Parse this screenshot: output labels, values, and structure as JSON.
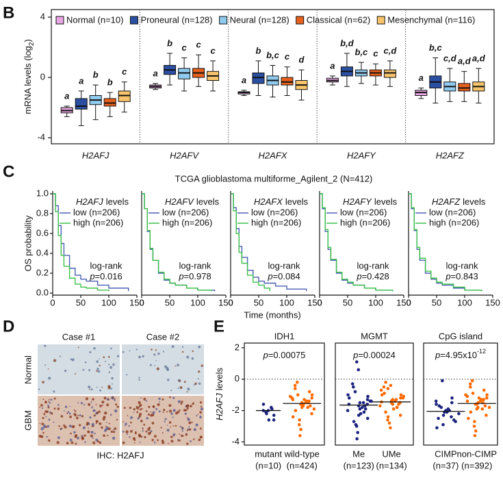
{
  "panel_labels": [
    "B",
    "C",
    "D",
    "E"
  ],
  "panel_c": {
    "title": "TCGA glioblastoma multiforme_Agilent_2 (N=412)",
    "y_label": "OS probability",
    "x_label": "Time (months)"
  },
  "figure_d": {
    "columns": [
      "Case #1",
      "Case #2"
    ],
    "rows": [
      "Normal",
      "GBM"
    ],
    "caption": "IHC: H2AFJ"
  },
  "chart_data": [
    {
      "type": "box",
      "y_label": "mRNA levels (log",
      "y_label_sub": "2",
      "y_label_end": ")",
      "categories": [
        "H2AFJ",
        "H2AFV",
        "H2AFX",
        "H2AFY",
        "H2AFZ"
      ],
      "ylim": [
        -4.4,
        4.5
      ],
      "yticks": [
        -4,
        0,
        4
      ],
      "series": [
        {
          "name": "Normal (n=10)",
          "color": "#e8a6e2",
          "values": [
            [
              -2.6,
              -2.35,
              -2.2,
              -2.0,
              -1.9
            ],
            [
              -0.8,
              -0.7,
              -0.6,
              -0.5,
              -0.4
            ],
            [
              -1.2,
              -1.1,
              -1.0,
              -0.95,
              -0.85
            ],
            [
              -0.5,
              -0.3,
              -0.2,
              -0.05,
              0.1
            ],
            [
              -1.4,
              -1.2,
              -1.0,
              -0.85,
              -0.7
            ]
          ],
          "letters": [
            "a",
            "a",
            "a",
            "a",
            "a"
          ]
        },
        {
          "name": "Proneural (n=128)",
          "color": "#2b4fa3",
          "values": [
            [
              -3.2,
              -2.1,
              -1.9,
              -1.4,
              -0.9
            ],
            [
              -0.5,
              0.2,
              0.5,
              0.8,
              1.6
            ],
            [
              -1.2,
              -0.4,
              0.0,
              0.3,
              1.1
            ],
            [
              -0.6,
              0.1,
              0.4,
              0.7,
              1.6
            ],
            [
              -1.7,
              -0.7,
              -0.3,
              0.1,
              1.3
            ]
          ],
          "letters": [
            "a",
            "b",
            "b",
            "b,d",
            "b,c"
          ]
        },
        {
          "name": "Neural (n=128)",
          "color": "#8fcbef",
          "values": [
            [
              -2.8,
              -1.8,
              -1.5,
              -1.2,
              -0.5
            ],
            [
              -0.9,
              -0.1,
              0.3,
              0.6,
              1.3
            ],
            [
              -1.3,
              -0.5,
              -0.2,
              0.1,
              0.8
            ],
            [
              -0.4,
              0.1,
              0.3,
              0.5,
              1.0
            ],
            [
              -1.6,
              -0.9,
              -0.6,
              -0.3,
              0.6
            ]
          ],
          "letters": [
            "b",
            "c",
            "b,c",
            "b,c",
            "c,d"
          ]
        },
        {
          "name": "Classical (n=62)",
          "color": "#e8601c",
          "values": [
            [
              -2.6,
              -1.9,
              -1.7,
              -1.4,
              -1.0
            ],
            [
              -0.6,
              0.0,
              0.3,
              0.6,
              1.5
            ],
            [
              -1.2,
              -0.5,
              -0.3,
              0.0,
              0.7
            ],
            [
              -0.5,
              0.1,
              0.3,
              0.5,
              0.9
            ],
            [
              -1.6,
              -0.9,
              -0.7,
              -0.4,
              0.4
            ]
          ],
          "letters": [
            "b",
            "c",
            "c",
            "c",
            "a,d"
          ]
        },
        {
          "name": "Mesenchymal (n=116)",
          "color": "#f7c46b",
          "values": [
            [
              -2.3,
              -1.6,
              -1.2,
              -0.9,
              -0.3
            ],
            [
              -0.9,
              -0.2,
              0.1,
              0.4,
              1.1
            ],
            [
              -1.5,
              -0.8,
              -0.5,
              -0.2,
              0.5
            ],
            [
              -0.6,
              0.0,
              0.3,
              0.5,
              1.1
            ],
            [
              -1.7,
              -0.9,
              -0.6,
              -0.3,
              0.6
            ]
          ],
          "letters": [
            "c",
            "c",
            "d",
            "c,d",
            "a,d"
          ]
        }
      ]
    },
    {
      "type": "km",
      "legend_gene": "H2AFJ",
      "legend_title": "levels",
      "stat": "log-rank",
      "p_label": "p",
      "p_value": "=0.016",
      "xlim": [
        0,
        150
      ],
      "xticks": [
        0,
        50,
        100,
        150
      ],
      "ylim": [
        0,
        1.0
      ],
      "yticks": [
        {
          "value": 0,
          "label": "0.0"
        },
        {
          "value": 0.2,
          "label": "0.2"
        },
        {
          "value": 0.4,
          "label": "0.4"
        },
        {
          "value": 0.6,
          "label": "0.6"
        },
        {
          "value": 0.8,
          "label": "0.8"
        },
        {
          "value": 1.0,
          "label": "1.0"
        }
      ],
      "series": [
        {
          "name": "low (n=206)",
          "color": "#4a5fb3",
          "x": [
            0,
            5,
            10,
            15,
            20,
            30,
            40,
            50,
            60,
            80,
            100,
            135
          ],
          "values": [
            1,
            0.88,
            0.68,
            0.5,
            0.38,
            0.25,
            0.18,
            0.14,
            0.12,
            0.08,
            0.05,
            0.02
          ]
        },
        {
          "name": "high (n=206)",
          "color": "#3cc04a",
          "x": [
            0,
            5,
            10,
            15,
            20,
            30,
            40,
            50,
            60,
            80,
            100
          ],
          "values": [
            1,
            0.82,
            0.58,
            0.38,
            0.27,
            0.15,
            0.09,
            0.06,
            0.05,
            0.03,
            0.02
          ]
        }
      ]
    },
    {
      "type": "km",
      "legend_gene": "H2AFV",
      "legend_title": "levels",
      "stat": "log-rank",
      "p_label": "p",
      "p_value": "=0.978",
      "xlim": [
        0,
        150
      ],
      "xticks": [
        0,
        50,
        100,
        150
      ],
      "ylim": [
        0,
        1.0
      ],
      "series": [
        {
          "name": "low (n=206)",
          "color": "#4a5fb3",
          "x": [
            0,
            5,
            10,
            15,
            20,
            30,
            40,
            50,
            60,
            80,
            100,
            130
          ],
          "values": [
            1,
            0.85,
            0.62,
            0.44,
            0.33,
            0.2,
            0.13,
            0.1,
            0.08,
            0.05,
            0.03,
            0.02
          ]
        },
        {
          "name": "high (n=206)",
          "color": "#3cc04a",
          "x": [
            0,
            5,
            10,
            15,
            20,
            30,
            40,
            50,
            60,
            80,
            100,
            125
          ],
          "values": [
            1,
            0.85,
            0.63,
            0.45,
            0.33,
            0.21,
            0.14,
            0.1,
            0.08,
            0.05,
            0.03,
            0.02
          ]
        }
      ]
    },
    {
      "type": "km",
      "legend_gene": "H2AFX",
      "legend_title": "levels",
      "stat": "log-rank",
      "p_label": "p",
      "p_value": "=0.084",
      "xlim": [
        0,
        150
      ],
      "xticks": [
        0,
        50,
        100,
        150
      ],
      "ylim": [
        0,
        1.0
      ],
      "series": [
        {
          "name": "low (n=206)",
          "color": "#4a5fb3",
          "x": [
            0,
            5,
            10,
            15,
            20,
            30,
            40,
            50,
            60,
            80,
            100,
            135
          ],
          "values": [
            1,
            0.86,
            0.65,
            0.47,
            0.36,
            0.23,
            0.16,
            0.12,
            0.1,
            0.07,
            0.04,
            0.02
          ]
        },
        {
          "name": "high (n=206)",
          "color": "#3cc04a",
          "x": [
            0,
            5,
            10,
            15,
            20,
            30,
            40,
            50,
            60,
            70
          ],
          "values": [
            1,
            0.83,
            0.6,
            0.41,
            0.3,
            0.18,
            0.11,
            0.08,
            0.05,
            0.02
          ]
        }
      ]
    },
    {
      "type": "km",
      "legend_gene": "H2AFY",
      "legend_title": "levels",
      "stat": "log-rank",
      "p_label": "p",
      "p_value": "=0.428",
      "xlim": [
        0,
        150
      ],
      "xticks": [
        0,
        50,
        100,
        150
      ],
      "ylim": [
        0,
        1.0
      ],
      "series": [
        {
          "name": "low (n=206)",
          "color": "#4a5fb3",
          "x": [
            0,
            5,
            10,
            15,
            20,
            30,
            40,
            50,
            60,
            80,
            100,
            130
          ],
          "values": [
            1,
            0.85,
            0.62,
            0.44,
            0.33,
            0.2,
            0.13,
            0.1,
            0.08,
            0.05,
            0.03,
            0.02
          ]
        },
        {
          "name": "high (n=206)",
          "color": "#3cc04a",
          "x": [
            0,
            5,
            10,
            15,
            20,
            30,
            40,
            50,
            60,
            80,
            100,
            130
          ],
          "values": [
            1,
            0.86,
            0.64,
            0.46,
            0.34,
            0.21,
            0.14,
            0.11,
            0.08,
            0.05,
            0.03,
            0.02
          ]
        }
      ]
    },
    {
      "type": "km",
      "legend_gene": "H2AFZ",
      "legend_title": "levels",
      "stat": "log-rank",
      "p_label": "p",
      "p_value": "=0.843",
      "xlim": [
        0,
        150
      ],
      "xticks": [
        0,
        50,
        100,
        150
      ],
      "ylim": [
        0,
        1.0
      ],
      "series": [
        {
          "name": "low (n=206)",
          "color": "#4a5fb3",
          "x": [
            0,
            5,
            10,
            15,
            20,
            30,
            40,
            50,
            60,
            80,
            100,
            130
          ],
          "values": [
            1,
            0.85,
            0.63,
            0.44,
            0.33,
            0.2,
            0.14,
            0.1,
            0.08,
            0.05,
            0.03,
            0.02
          ]
        },
        {
          "name": "high (n=206)",
          "color": "#3cc04a",
          "x": [
            0,
            5,
            10,
            15,
            20,
            30,
            40,
            50,
            60,
            80,
            100,
            130
          ],
          "values": [
            1,
            0.86,
            0.64,
            0.46,
            0.35,
            0.22,
            0.15,
            0.11,
            0.09,
            0.06,
            0.03,
            0.02
          ]
        }
      ]
    },
    {
      "type": "strip",
      "title": "IDH1",
      "p_label": "p",
      "p_value": "=0.00075",
      "y_label_gene": "H2AFJ",
      "y_label": "levels",
      "ylim": [
        -4.2,
        2.3
      ],
      "yticks": [
        -4,
        -2,
        0,
        2
      ],
      "reference_line": 0,
      "categories": [
        "mutant",
        "wild-type"
      ],
      "counts": [
        "(n=10)",
        "(n=424)"
      ],
      "medians": [
        -2.0,
        -1.55
      ],
      "groups": [
        {
          "color": "#1a237e",
          "values": [
            -2.0,
            -1.6,
            -1.8,
            -2.1,
            -2.3,
            -2.6,
            -2.0,
            -1.9,
            -2.2,
            -2.6
          ]
        },
        {
          "color": "#ff6a00",
          "values": [
            -1.5,
            -1.2,
            -1.8,
            -1.0,
            -2.2,
            -1.6,
            -0.6,
            -1.4,
            -2.6,
            -1.9,
            -1.3,
            -0.2,
            -1.7,
            -3.2,
            -1.1,
            -1.5,
            -2.0,
            -0.8,
            -1.6,
            -2.4,
            -1.4,
            -3.6,
            -1.2,
            -1.8,
            -0.4,
            -1.5,
            -2.9,
            -1.0,
            -1.7,
            -1.3
          ]
        }
      ]
    },
    {
      "type": "strip",
      "title": "MGMT",
      "p_label": "p",
      "p_value": "=0.00024",
      "ylim": [
        -4.2,
        2.3
      ],
      "reference_line": 0,
      "categories": [
        "Me",
        "UMe"
      ],
      "counts": [
        "(n=123)",
        "(n=134)"
      ],
      "medians": [
        -1.65,
        -1.45
      ],
      "groups": [
        {
          "color": "#1a237e",
          "values": [
            -1.7,
            -1.2,
            -2.1,
            -0.8,
            -2.5,
            -1.5,
            1.1,
            -1.9,
            -3.0,
            -1.4,
            -2.2,
            -0.5,
            -1.6,
            -3.4,
            -1.0,
            -1.8,
            -2.7,
            -1.3,
            0.6,
            -2.0,
            -1.5,
            -3.8,
            -1.1,
            -2.3,
            -0.3,
            -1.7,
            -2.9,
            -1.4,
            -1.9,
            -1.6
          ]
        },
        {
          "color": "#ff6a00",
          "values": [
            -1.4,
            -1.0,
            -1.8,
            -0.6,
            -2.3,
            -1.3,
            -0.2,
            -1.6,
            -2.8,
            -1.1,
            -1.9,
            -0.9,
            -1.5,
            -3.1,
            -0.7,
            -1.4,
            -2.1,
            -1.2,
            -0.4,
            -1.7,
            -1.3,
            -2.6,
            -1.0,
            -1.5,
            -0.5,
            -1.8,
            -2.4,
            -1.2,
            -1.6,
            -1.45
          ]
        }
      ]
    },
    {
      "type": "strip",
      "title": "CpG island",
      "p_label": "p",
      "p_value": "=4.95x10",
      "p_exponent": "-12",
      "ylim": [
        -4.2,
        2.3
      ],
      "reference_line": 0,
      "categories": [
        "CIMP",
        "non-CIMP"
      ],
      "counts": [
        "(n=37)",
        "(n=392)"
      ],
      "medians": [
        -2.05,
        -1.55
      ],
      "groups": [
        {
          "color": "#1a237e",
          "values": [
            -2.0,
            -1.6,
            -2.4,
            -1.8,
            -2.7,
            -2.1,
            -0.1,
            -1.5,
            -2.9,
            -2.2,
            -1.9,
            -2.5,
            -1.2,
            -2.3,
            -3.1,
            -2.0,
            -1.7,
            -2.6,
            -2.1,
            -1.4
          ]
        },
        {
          "color": "#ff6a00",
          "values": [
            -1.6,
            -1.1,
            -1.9,
            -0.9,
            -2.3,
            -1.5,
            -0.5,
            -1.3,
            -2.7,
            -1.8,
            -1.2,
            -0.1,
            -1.7,
            -3.3,
            -1.0,
            -1.4,
            -2.1,
            -0.7,
            -1.6,
            -2.5,
            -1.3,
            -3.6,
            -1.2,
            -1.9,
            -0.3,
            -1.5,
            -3.0,
            -1.0,
            -1.8,
            -1.4
          ]
        }
      ]
    }
  ]
}
